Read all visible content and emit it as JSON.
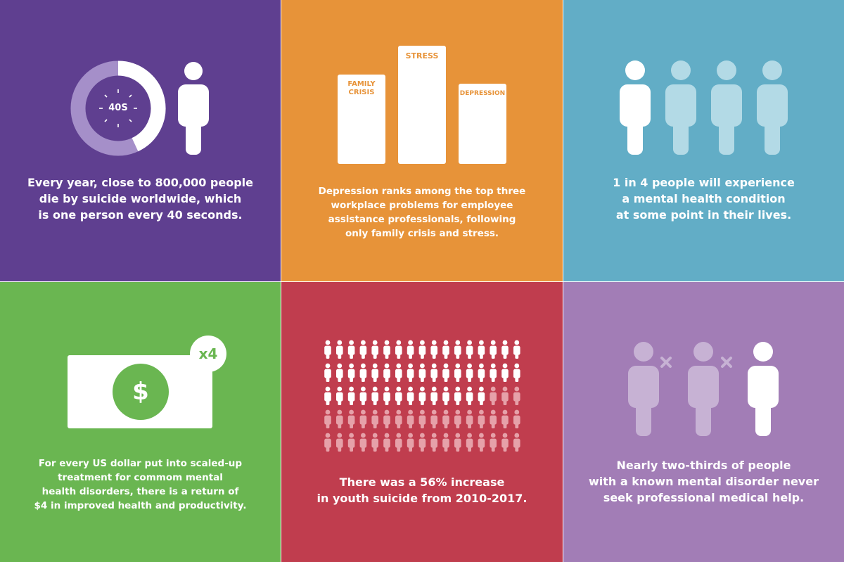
{
  "panels": {
    "suicide_rate": {
      "timer_label": "40S",
      "caption": "Every year, close to 800,000 people\ndie by suicide worldwide, which\nis one person every 40 seconds."
    },
    "workplace": {
      "bars": [
        {
          "label": "FAMILY\nCRISIS"
        },
        {
          "label": "STRESS"
        },
        {
          "label": "DEPRESSION"
        }
      ],
      "caption": "Depression ranks among the top three\nworkplace problems for employee\nassistance professionals, following\nonly family crisis and stress."
    },
    "prevalence": {
      "caption": "1 in 4 people will experience\na mental health condition\nat some point in their lives."
    },
    "roi": {
      "dollar_symbol": "$",
      "multiplier": "x4",
      "caption": "For every US dollar put into scaled-up\ntreatment for commom mental\nhealth disorders, there is a return of\n$4 in improved health and productivity."
    },
    "youth": {
      "caption": "There was a 56% increase\nin youth suicide from 2010-2017."
    },
    "treatment_gap": {
      "caption": "Nearly two-thirds of people\nwith a known mental disorder never\nseek professional medical help."
    }
  },
  "colors": {
    "purple": "#5f3f90",
    "orange": "#e79339",
    "blue": "#62adc6",
    "green": "#6ab651",
    "red": "#c03d4e",
    "lilac": "#a27db6"
  }
}
